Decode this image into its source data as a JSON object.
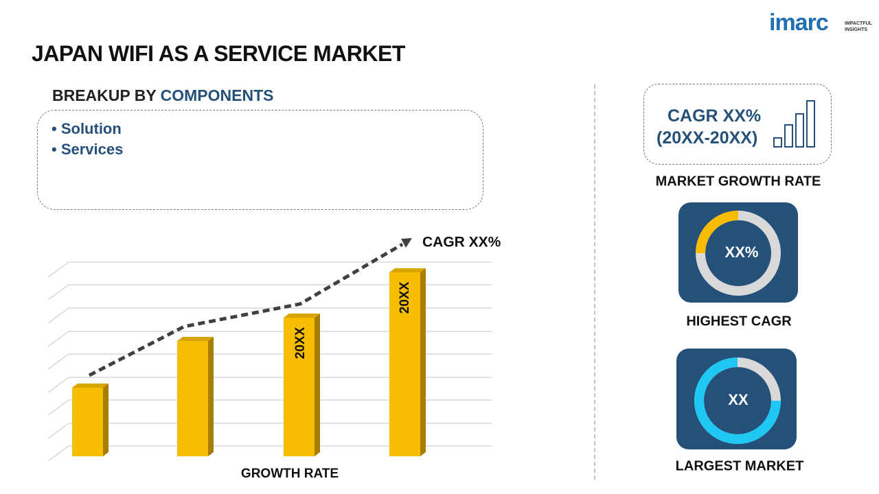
{
  "header": {
    "title": "JAPAN WIFI AS A SERVICE MARKET",
    "logo": "imarc",
    "logo_tagline": [
      "IMPACTFUL",
      "INSIGHTS"
    ]
  },
  "breakup": {
    "label": "BREAKUP BY",
    "highlight": "COMPONENTS",
    "items": [
      "Solution",
      "Services"
    ]
  },
  "growth_chart": {
    "bar_labels": [
      "20XX",
      "20XX"
    ],
    "cagr": "CAGR XX%",
    "axis_label": "GROWTH RATE"
  },
  "cagr_box": {
    "lines": [
      "CAGR XX%",
      "(20XX-20XX)"
    ],
    "caption": "MARKET GROWTH RATE"
  },
  "highest": {
    "value": "XX%",
    "caption": "HIGHEST CAGR"
  },
  "largest": {
    "value": "XX",
    "caption": "LARGEST MARKET"
  }
}
